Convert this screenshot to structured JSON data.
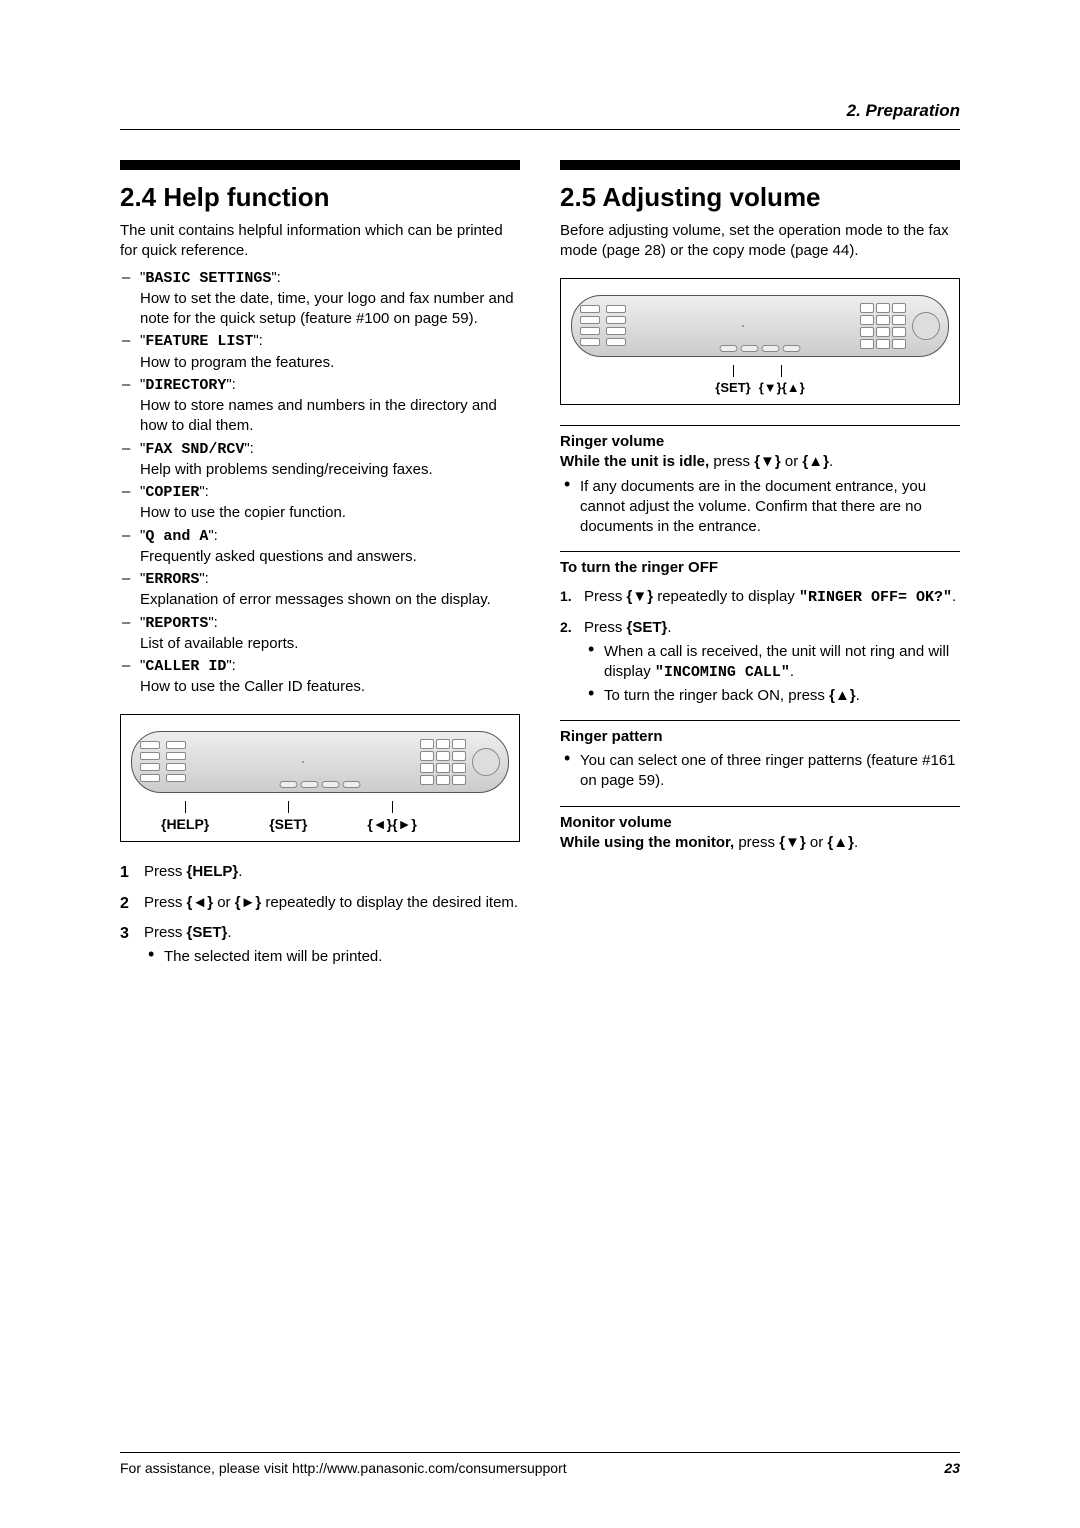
{
  "header": {
    "chapter": "2. Preparation"
  },
  "left": {
    "heading": "2.4 Help function",
    "intro": "The unit contains helpful information which can be printed for quick reference.",
    "items": [
      {
        "label": "BASIC SETTINGS",
        "desc": "How to set the date, time, your logo and fax number and note for the quick setup (feature #100 on page 59)."
      },
      {
        "label": "FEATURE LIST",
        "desc": "How to program the features."
      },
      {
        "label": "DIRECTORY",
        "desc": "How to store names and numbers in the directory and how to dial them."
      },
      {
        "label": "FAX SND/RCV",
        "desc": "Help with problems sending/receiving faxes."
      },
      {
        "label": "COPIER",
        "desc": "How to use the copier function."
      },
      {
        "label": "Q and A",
        "desc": "Frequently asked questions and answers."
      },
      {
        "label": "ERRORS",
        "desc": "Explanation of error messages shown on the display."
      },
      {
        "label": "REPORTS",
        "desc": "List of available reports."
      },
      {
        "label": "CALLER ID",
        "desc": "How to use the Caller ID features."
      }
    ],
    "panel_labels": {
      "help": "{HELP}",
      "set": "{SET}",
      "arrows": "{◄}{►}"
    },
    "steps": {
      "s1_a": "Press ",
      "s1_b": "{HELP}",
      "s1_c": ".",
      "s2_a": "Press ",
      "s2_b": "{◄}",
      "s2_c": " or ",
      "s2_d": "{►}",
      "s2_e": " repeatedly to display the desired item.",
      "s3_a": "Press ",
      "s3_b": "{SET}",
      "s3_c": ".",
      "s3_bullet": "The selected item will be printed."
    }
  },
  "right": {
    "heading": "2.5 Adjusting volume",
    "intro": "Before adjusting volume, set the operation mode to the fax mode (page 28) or the copy mode (page 44).",
    "panel_labels": {
      "set": "{SET}",
      "arrows": "{▼}{▲}"
    },
    "ringer": {
      "title": "Ringer volume",
      "idle_a": "While the unit is idle,",
      "idle_b": " press ",
      "idle_c": "{▼}",
      "idle_d": " or ",
      "idle_e": "{▲}",
      "idle_f": ".",
      "bullet": "If any documents are in the document entrance, you cannot adjust the volume. Confirm that there are no documents in the entrance."
    },
    "ringer_off": {
      "title": "To turn the ringer OFF",
      "s1_a": "Press ",
      "s1_b": "{▼}",
      "s1_c": " repeatedly to display ",
      "s1_d": "\"RINGER OFF= OK?\"",
      "s1_e": ".",
      "s2_a": "Press ",
      "s2_b": "{SET}",
      "s2_c": ".",
      "s2_b1_a": "When a call is received, the unit will not ring and will display ",
      "s2_b1_b": "\"INCOMING CALL\"",
      "s2_b1_c": ".",
      "s2_b2_a": "To turn the ringer back ON, press ",
      "s2_b2_b": "{▲}",
      "s2_b2_c": "."
    },
    "ringer_pattern": {
      "title": "Ringer pattern",
      "bullet": "You can select one of three ringer patterns (feature #161 on page 59)."
    },
    "monitor": {
      "title": "Monitor volume",
      "a": "While using the monitor,",
      "b": " press ",
      "c": "{▼}",
      "d": " or ",
      "e": "{▲}",
      "f": "."
    }
  },
  "footer": {
    "text": "For assistance, please visit http://www.panasonic.com/consumersupport",
    "page": "23"
  }
}
